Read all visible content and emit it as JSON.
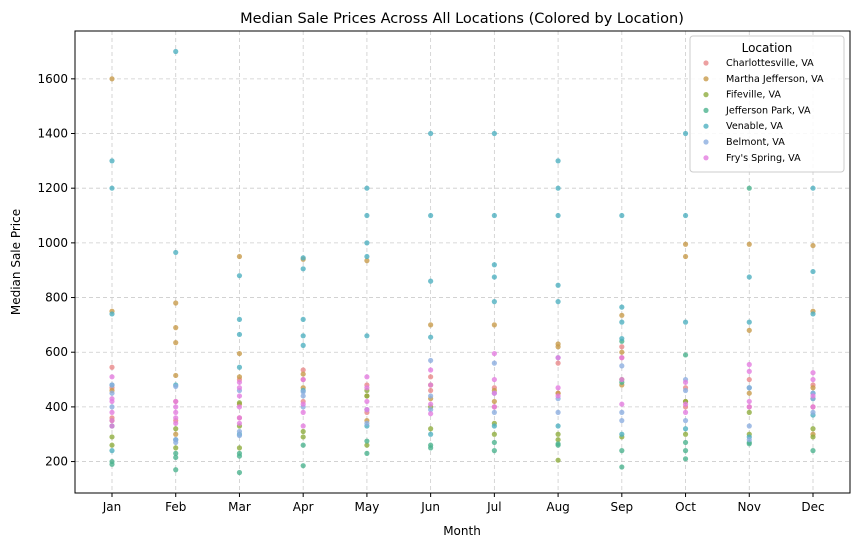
{
  "chart_data": {
    "type": "scatter",
    "title": "Median Sale Prices Across All Locations (Colored by Location)",
    "xlabel": "Month",
    "ylabel": "Median Sale Price",
    "categories": [
      "Jan",
      "Feb",
      "Mar",
      "Apr",
      "May",
      "Jun",
      "Jul",
      "Aug",
      "Sep",
      "Oct",
      "Nov",
      "Dec"
    ],
    "ylim": [
      85,
      1775
    ],
    "yticks": [
      200,
      400,
      600,
      800,
      1000,
      1200,
      1400,
      1600
    ],
    "grid": true,
    "legend": {
      "title": "Location",
      "placement": "top-right"
    },
    "series": [
      {
        "name": "Charlottesville, VA",
        "color": "#e8888a",
        "points": [
          [
            "Jan",
            545
          ],
          [
            "Jan",
            470
          ],
          [
            "Jan",
            360
          ],
          [
            "Feb",
            420
          ],
          [
            "Feb",
            350
          ],
          [
            "Mar",
            500
          ],
          [
            "Mar",
            360
          ],
          [
            "Apr",
            535
          ],
          [
            "Apr",
            500
          ],
          [
            "Apr",
            420
          ],
          [
            "May",
            480
          ],
          [
            "May",
            380
          ],
          [
            "Jun",
            510
          ],
          [
            "Jun",
            460
          ],
          [
            "Jul",
            470
          ],
          [
            "Jul",
            400
          ],
          [
            "Aug",
            560
          ],
          [
            "Aug",
            450
          ],
          [
            "Sep",
            620
          ],
          [
            "Sep",
            580
          ],
          [
            "Oct",
            470
          ],
          [
            "Oct",
            400
          ],
          [
            "Nov",
            500
          ],
          [
            "Nov",
            400
          ],
          [
            "Dec",
            480
          ],
          [
            "Dec",
            400
          ]
        ]
      },
      {
        "name": "Martha Jefferson, VA",
        "color": "#c89b4b",
        "points": [
          [
            "Jan",
            1600
          ],
          [
            "Jan",
            750
          ],
          [
            "Jan",
            460
          ],
          [
            "Jan",
            350
          ],
          [
            "Feb",
            780
          ],
          [
            "Feb",
            690
          ],
          [
            "Feb",
            635
          ],
          [
            "Feb",
            515
          ],
          [
            "Feb",
            300
          ],
          [
            "Mar",
            950
          ],
          [
            "Mar",
            595
          ],
          [
            "Mar",
            510
          ],
          [
            "Mar",
            410
          ],
          [
            "Apr",
            940
          ],
          [
            "Apr",
            520
          ],
          [
            "Apr",
            470
          ],
          [
            "May",
            935
          ],
          [
            "May",
            440
          ],
          [
            "May",
            350
          ],
          [
            "Jun",
            700
          ],
          [
            "Jun",
            480
          ],
          [
            "Jun",
            430
          ],
          [
            "Jul",
            700
          ],
          [
            "Jul",
            460
          ],
          [
            "Jul",
            420
          ],
          [
            "Aug",
            630
          ],
          [
            "Aug",
            620
          ],
          [
            "Aug",
            450
          ],
          [
            "Sep",
            735
          ],
          [
            "Sep",
            600
          ],
          [
            "Sep",
            480
          ],
          [
            "Oct",
            995
          ],
          [
            "Oct",
            950
          ],
          [
            "Oct",
            420
          ],
          [
            "Nov",
            995
          ],
          [
            "Nov",
            680
          ],
          [
            "Nov",
            450
          ],
          [
            "Dec",
            990
          ],
          [
            "Dec",
            750
          ],
          [
            "Dec",
            470
          ],
          [
            "Dec",
            300
          ]
        ]
      },
      {
        "name": "Fifeville, VA",
        "color": "#8fac3f",
        "points": [
          [
            "Jan",
            290
          ],
          [
            "Jan",
            260
          ],
          [
            "Feb",
            320
          ],
          [
            "Feb",
            250
          ],
          [
            "Mar",
            415
          ],
          [
            "Mar",
            330
          ],
          [
            "Mar",
            250
          ],
          [
            "Apr",
            310
          ],
          [
            "Apr",
            290
          ],
          [
            "May",
            460
          ],
          [
            "May",
            440
          ],
          [
            "May",
            260
          ],
          [
            "Jun",
            400
          ],
          [
            "Jun",
            320
          ],
          [
            "Jul",
            340
          ],
          [
            "Jul",
            300
          ],
          [
            "Aug",
            300
          ],
          [
            "Aug",
            280
          ],
          [
            "Aug",
            205
          ],
          [
            "Sep",
            500
          ],
          [
            "Sep",
            290
          ],
          [
            "Oct",
            420
          ],
          [
            "Oct",
            300
          ],
          [
            "Nov",
            380
          ],
          [
            "Nov",
            300
          ],
          [
            "Dec",
            320
          ],
          [
            "Dec",
            290
          ]
        ]
      },
      {
        "name": "Jefferson Park, VA",
        "color": "#4cb38f",
        "points": [
          [
            "Jan",
            330
          ],
          [
            "Jan",
            200
          ],
          [
            "Jan",
            190
          ],
          [
            "Feb",
            230
          ],
          [
            "Feb",
            215
          ],
          [
            "Feb",
            170
          ],
          [
            "Mar",
            230
          ],
          [
            "Mar",
            220
          ],
          [
            "Mar",
            160
          ],
          [
            "Apr",
            260
          ],
          [
            "Apr",
            185
          ],
          [
            "May",
            275
          ],
          [
            "May",
            230
          ],
          [
            "Jun",
            260
          ],
          [
            "Jun",
            250
          ],
          [
            "Jul",
            270
          ],
          [
            "Jul",
            240
          ],
          [
            "Aug",
            265
          ],
          [
            "Aug",
            260
          ],
          [
            "Sep",
            640
          ],
          [
            "Sep",
            490
          ],
          [
            "Sep",
            240
          ],
          [
            "Sep",
            180
          ],
          [
            "Oct",
            590
          ],
          [
            "Oct",
            270
          ],
          [
            "Oct",
            240
          ],
          [
            "Oct",
            210
          ],
          [
            "Nov",
            1200
          ],
          [
            "Nov",
            270
          ],
          [
            "Nov",
            265
          ],
          [
            "Dec",
            430
          ],
          [
            "Dec",
            240
          ]
        ]
      },
      {
        "name": "Venable, VA",
        "color": "#4fb0c1",
        "points": [
          [
            "Jan",
            1300
          ],
          [
            "Jan",
            1200
          ],
          [
            "Jan",
            740
          ],
          [
            "Jan",
            480
          ],
          [
            "Jan",
            240
          ],
          [
            "Feb",
            1700
          ],
          [
            "Feb",
            965
          ],
          [
            "Feb",
            480
          ],
          [
            "Feb",
            280
          ],
          [
            "Mar",
            880
          ],
          [
            "Mar",
            720
          ],
          [
            "Mar",
            665
          ],
          [
            "Mar",
            545
          ],
          [
            "Mar",
            300
          ],
          [
            "Apr",
            945
          ],
          [
            "Apr",
            905
          ],
          [
            "Apr",
            720
          ],
          [
            "Apr",
            660
          ],
          [
            "Apr",
            625
          ],
          [
            "Apr",
            460
          ],
          [
            "May",
            1200
          ],
          [
            "May",
            1100
          ],
          [
            "May",
            1000
          ],
          [
            "May",
            950
          ],
          [
            "May",
            660
          ],
          [
            "May",
            330
          ],
          [
            "Jun",
            1400
          ],
          [
            "Jun",
            1100
          ],
          [
            "Jun",
            860
          ],
          [
            "Jun",
            655
          ],
          [
            "Jun",
            300
          ],
          [
            "Jul",
            1400
          ],
          [
            "Jul",
            1100
          ],
          [
            "Jul",
            920
          ],
          [
            "Jul",
            875
          ],
          [
            "Jul",
            785
          ],
          [
            "Jul",
            330
          ],
          [
            "Aug",
            1300
          ],
          [
            "Aug",
            1200
          ],
          [
            "Aug",
            1100
          ],
          [
            "Aug",
            845
          ],
          [
            "Aug",
            785
          ],
          [
            "Aug",
            330
          ],
          [
            "Sep",
            1100
          ],
          [
            "Sep",
            765
          ],
          [
            "Sep",
            710
          ],
          [
            "Sep",
            650
          ],
          [
            "Sep",
            300
          ],
          [
            "Oct",
            1400
          ],
          [
            "Oct",
            1100
          ],
          [
            "Oct",
            710
          ],
          [
            "Oct",
            320
          ],
          [
            "Nov",
            710
          ],
          [
            "Nov",
            875
          ],
          [
            "Nov",
            470
          ],
          [
            "Nov",
            290
          ],
          [
            "Dec",
            1200
          ],
          [
            "Dec",
            895
          ],
          [
            "Dec",
            740
          ],
          [
            "Dec",
            450
          ],
          [
            "Dec",
            370
          ]
        ]
      },
      {
        "name": "Belmont, VA",
        "color": "#8caee0",
        "points": [
          [
            "Jan",
            480
          ],
          [
            "Jan",
            450
          ],
          [
            "Jan",
            400
          ],
          [
            "Feb",
            475
          ],
          [
            "Feb",
            280
          ],
          [
            "Feb",
            270
          ],
          [
            "Mar",
            460
          ],
          [
            "Mar",
            310
          ],
          [
            "Mar",
            295
          ],
          [
            "Apr",
            455
          ],
          [
            "Apr",
            440
          ],
          [
            "Apr",
            400
          ],
          [
            "May",
            390
          ],
          [
            "May",
            340
          ],
          [
            "Jun",
            570
          ],
          [
            "Jun",
            440
          ],
          [
            "Jun",
            390
          ],
          [
            "Jul",
            560
          ],
          [
            "Jul",
            450
          ],
          [
            "Jul",
            380
          ],
          [
            "Aug",
            580
          ],
          [
            "Aug",
            430
          ],
          [
            "Aug",
            380
          ],
          [
            "Sep",
            550
          ],
          [
            "Sep",
            380
          ],
          [
            "Sep",
            350
          ],
          [
            "Oct",
            500
          ],
          [
            "Oct",
            460
          ],
          [
            "Oct",
            350
          ],
          [
            "Nov",
            470
          ],
          [
            "Nov",
            330
          ],
          [
            "Nov",
            280
          ],
          [
            "Dec",
            450
          ],
          [
            "Dec",
            430
          ],
          [
            "Dec",
            380
          ]
        ]
      },
      {
        "name": "Fry's Spring, VA",
        "color": "#e47de0",
        "points": [
          [
            "Jan",
            510
          ],
          [
            "Jan",
            430
          ],
          [
            "Jan",
            420
          ],
          [
            "Jan",
            380
          ],
          [
            "Jan",
            350
          ],
          [
            "Jan",
            330
          ],
          [
            "Feb",
            420
          ],
          [
            "Feb",
            400
          ],
          [
            "Feb",
            380
          ],
          [
            "Feb",
            360
          ],
          [
            "Feb",
            340
          ],
          [
            "Mar",
            490
          ],
          [
            "Mar",
            470
          ],
          [
            "Mar",
            440
          ],
          [
            "Mar",
            400
          ],
          [
            "Mar",
            360
          ],
          [
            "Mar",
            340
          ],
          [
            "Apr",
            500
          ],
          [
            "Apr",
            410
          ],
          [
            "Apr",
            380
          ],
          [
            "Apr",
            330
          ],
          [
            "May",
            510
          ],
          [
            "May",
            470
          ],
          [
            "May",
            420
          ],
          [
            "May",
            390
          ],
          [
            "Jun",
            535
          ],
          [
            "Jun",
            480
          ],
          [
            "Jun",
            410
          ],
          [
            "Jun",
            375
          ],
          [
            "Jul",
            595
          ],
          [
            "Jul",
            500
          ],
          [
            "Jul",
            450
          ],
          [
            "Jul",
            400
          ],
          [
            "Aug",
            580
          ],
          [
            "Aug",
            470
          ],
          [
            "Aug",
            440
          ],
          [
            "Sep",
            580
          ],
          [
            "Sep",
            500
          ],
          [
            "Sep",
            410
          ],
          [
            "Oct",
            490
          ],
          [
            "Oct",
            410
          ],
          [
            "Oct",
            380
          ],
          [
            "Nov",
            555
          ],
          [
            "Nov",
            530
          ],
          [
            "Nov",
            420
          ],
          [
            "Nov",
            400
          ],
          [
            "Dec",
            525
          ],
          [
            "Dec",
            500
          ],
          [
            "Dec",
            440
          ],
          [
            "Dec",
            400
          ]
        ]
      }
    ]
  }
}
